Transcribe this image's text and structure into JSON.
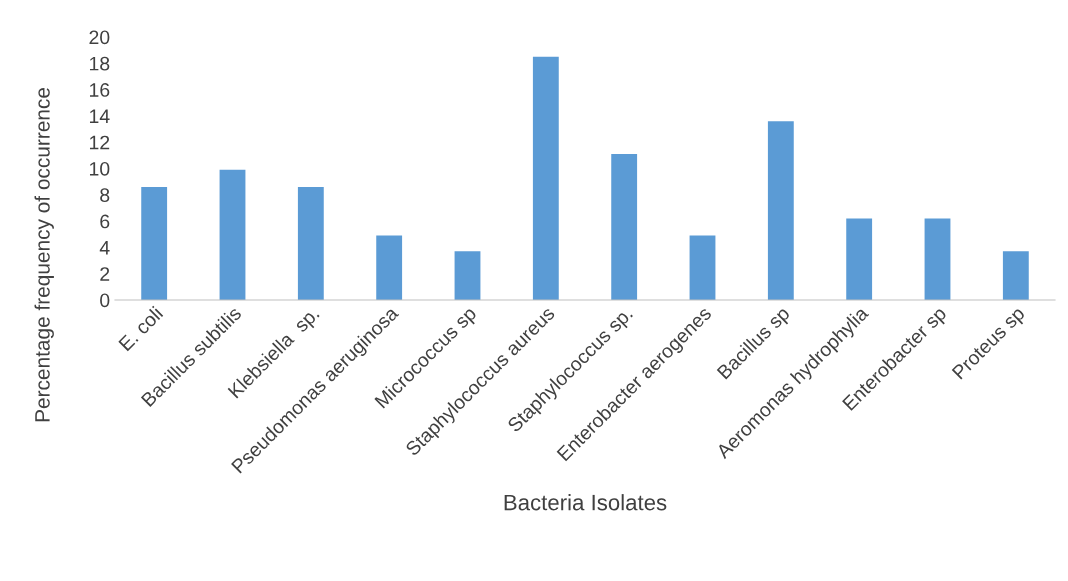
{
  "chart_data": {
    "type": "bar",
    "xlabel": "Bacteria Isolates",
    "ylabel": "Percentage frequency of occurrence",
    "categories": [
      "E. coli",
      "Bacillus subtilis",
      "Klebsiella  sp.",
      "Pseudomonas aeruginosa",
      "Micrococcus sp",
      "Staphylococcus aureus",
      "Staphylococcus sp.",
      "Enterobacter aerogenes",
      "Bacillus sp",
      "Aeromonas hydrophylia",
      "Enterobacter sp",
      "Proteus sp"
    ],
    "values": [
      8.6,
      9.9,
      8.6,
      4.9,
      3.7,
      18.5,
      11.1,
      4.9,
      13.6,
      6.2,
      6.2,
      3.7
    ],
    "color": "#5b9bd5",
    "ylim": [
      0,
      20
    ],
    "yticks": [
      0,
      2,
      4,
      6,
      8,
      10,
      12,
      14,
      16,
      18,
      20
    ],
    "grid": false,
    "legend": false
  }
}
